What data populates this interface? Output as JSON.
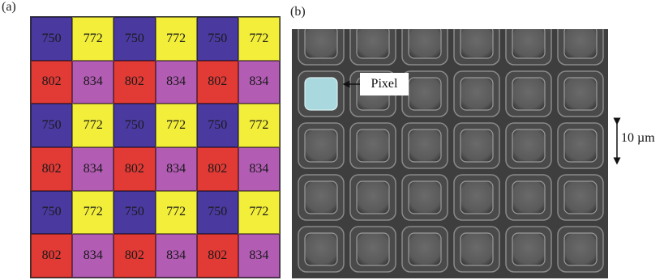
{
  "panel_a": {
    "label": "(a)",
    "colors": {
      "750": "#4a3aa0",
      "772": "#f2ee3a",
      "802": "#e23a35",
      "834": "#b25cb4"
    },
    "rows": [
      [
        "750",
        "772",
        "750",
        "772",
        "750",
        "772"
      ],
      [
        "802",
        "834",
        "802",
        "834",
        "802",
        "834"
      ],
      [
        "750",
        "772",
        "750",
        "772",
        "750",
        "772"
      ],
      [
        "802",
        "834",
        "802",
        "834",
        "802",
        "834"
      ],
      [
        "750",
        "772",
        "750",
        "772",
        "750",
        "772"
      ],
      [
        "802",
        "834",
        "802",
        "834",
        "802",
        "834"
      ]
    ]
  },
  "panel_b": {
    "label": "(b)",
    "pixel_label": "Pixel",
    "highlight_color": "#a9d9de",
    "scale_label": "10 µm"
  }
}
